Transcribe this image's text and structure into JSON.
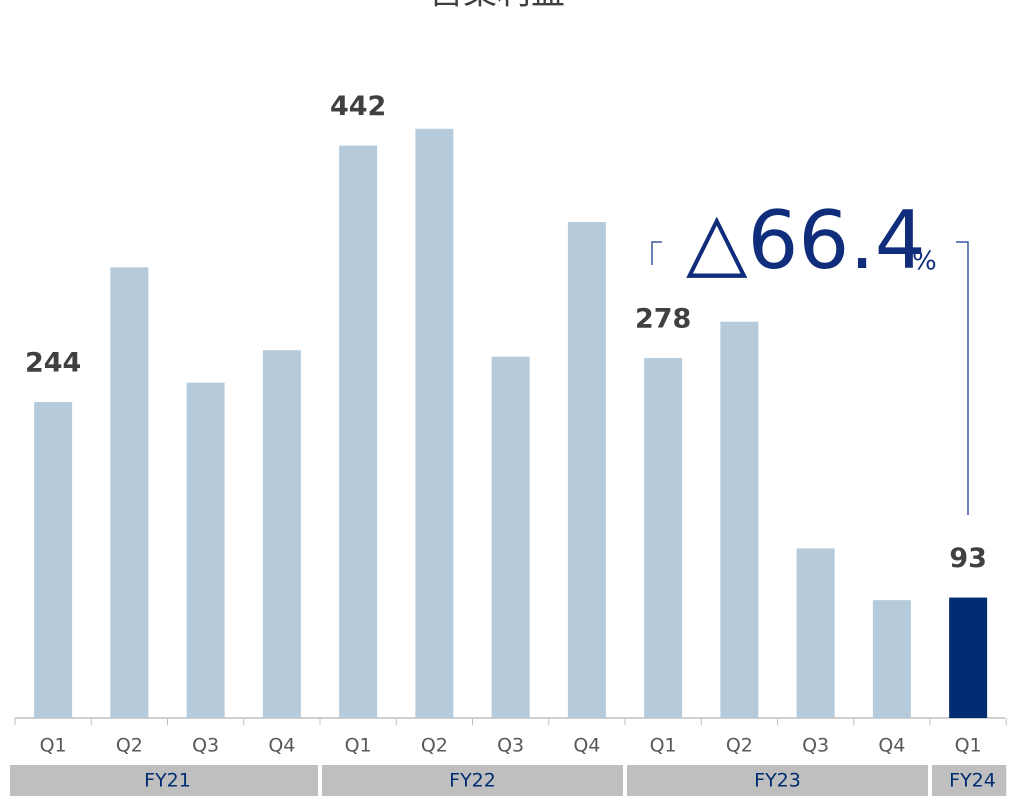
{
  "chart_data": {
    "type": "bar",
    "title": "営業利益",
    "ylim": [
      0,
      500
    ],
    "groups": [
      {
        "name": "FY21",
        "color": "#b5cbdc",
        "categories": [
          "Q1",
          "Q2",
          "Q3",
          "Q4"
        ],
        "values": [
          244,
          348,
          259,
          284
        ],
        "value_labels": [
          "244",
          null,
          null,
          null
        ]
      },
      {
        "name": "FY22",
        "color": "#b5cbdc",
        "categories": [
          "Q1",
          "Q2",
          "Q3",
          "Q4"
        ],
        "values": [
          442,
          455,
          279,
          383
        ],
        "value_labels": [
          "442",
          null,
          null,
          null
        ]
      },
      {
        "name": "FY23",
        "color": "#b5cbdc",
        "categories": [
          "Q1",
          "Q2",
          "Q3",
          "Q4"
        ],
        "values": [
          278,
          306,
          131,
          91
        ],
        "value_labels": [
          "278",
          null,
          null,
          null
        ]
      },
      {
        "name": "FY24",
        "color": "#002d72",
        "categories": [
          "Q1"
        ],
        "values": [
          93
        ],
        "value_labels": [
          "93"
        ]
      }
    ],
    "annotation": {
      "text": "△66.4",
      "unit": "%"
    }
  }
}
